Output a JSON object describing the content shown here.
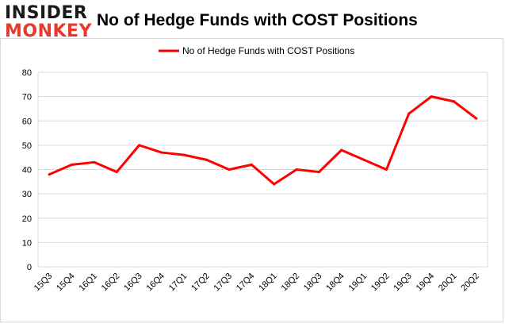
{
  "logo": {
    "line1": "INSIDER",
    "line2": "MONKEY"
  },
  "colors": {
    "series": "#ff0000",
    "grid": "#d9d9d9",
    "logo_accent": "#e8392b"
  },
  "chart_data": {
    "type": "line",
    "title": "No of Hedge Funds with COST Positions",
    "legend": "top-center",
    "grid": true,
    "ylim": [
      0,
      80
    ],
    "yticks": [
      0,
      10,
      20,
      30,
      40,
      50,
      60,
      70,
      80
    ],
    "categories": [
      "15Q3",
      "15Q4",
      "16Q1",
      "16Q2",
      "16Q3",
      "16Q4",
      "17Q1",
      "17Q2",
      "17Q3",
      "17Q4",
      "18Q1",
      "18Q2",
      "18Q3",
      "18Q4",
      "19Q1",
      "19Q2",
      "19Q3",
      "19Q4",
      "20Q1",
      "20Q2"
    ],
    "series": [
      {
        "name": "No of Hedge Funds with COST Positions",
        "values": [
          38,
          42,
          43,
          39,
          50,
          47,
          46,
          44,
          40,
          42,
          34,
          40,
          39,
          48,
          44,
          40,
          63,
          70,
          68,
          61
        ]
      }
    ]
  }
}
